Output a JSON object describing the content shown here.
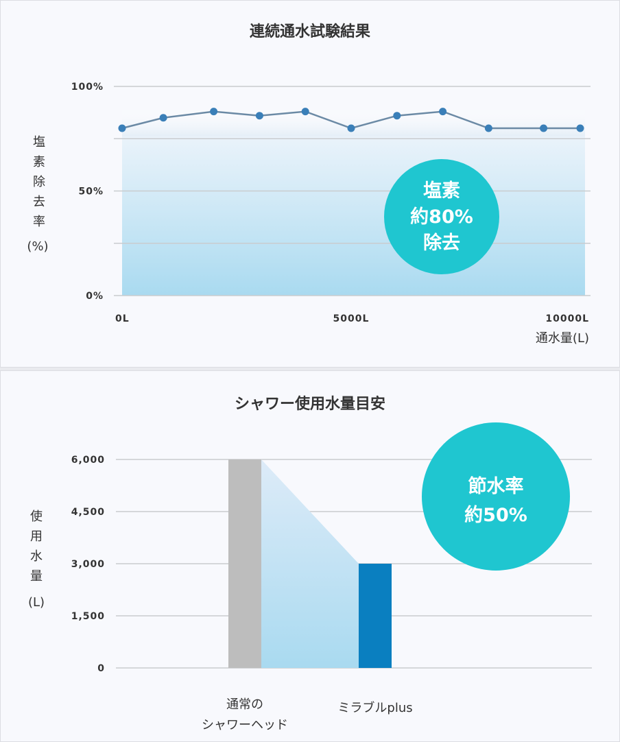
{
  "chart_data": [
    {
      "type": "line",
      "title": "連続通水試験結果",
      "ylabel": "塩素除去率",
      "ylabel_unit": "(%)",
      "xlabel": "通水量(L)",
      "ylim": [
        0,
        100
      ],
      "xlim": [
        0,
        10000
      ],
      "yticks": [
        {
          "v": 100,
          "label": "100%"
        },
        {
          "v": 50,
          "label": "50%"
        },
        {
          "v": 0,
          "label": "0%"
        }
      ],
      "ygrid": [
        0,
        25,
        50,
        75,
        100
      ],
      "xticks": [
        {
          "v": 0,
          "label": "0L"
        },
        {
          "v": 5000,
          "label": "5000L"
        },
        {
          "v": 10000,
          "label": "10000L"
        }
      ],
      "x": [
        0,
        900,
        2000,
        3000,
        4000,
        5000,
        6000,
        7000,
        8000,
        9200,
        10000
      ],
      "values": [
        80,
        85,
        88,
        86,
        88,
        80,
        86,
        88,
        80,
        80,
        80
      ],
      "shaded_level": 76,
      "grid": true,
      "badge": [
        "塩素",
        "約80%",
        "除去"
      ],
      "colors": {
        "line": "#6b8aa5",
        "marker": "#3a7fb8",
        "badge": "#1fc6d0"
      }
    },
    {
      "type": "bar",
      "title": "シャワー使用水量目安",
      "ylabel": "使用水量",
      "ylabel_unit": "(L)",
      "ylim": [
        0,
        6000
      ],
      "yticks": [
        {
          "v": 6000,
          "label": "6,000"
        },
        {
          "v": 4500,
          "label": "4,500"
        },
        {
          "v": 3000,
          "label": "3,000"
        },
        {
          "v": 1500,
          "label": "1,500"
        },
        {
          "v": 0,
          "label": "0"
        }
      ],
      "categories": [
        [
          "通常の",
          "シャワーヘッド"
        ],
        [
          "ミラブルplus"
        ]
      ],
      "values": [
        6000,
        3000
      ],
      "grid": true,
      "badge": [
        "節水率",
        "約50%"
      ],
      "colors": {
        "bars": [
          "#bdbdbd",
          "#0a7fc0"
        ],
        "badge": "#1fc6d0"
      }
    }
  ]
}
